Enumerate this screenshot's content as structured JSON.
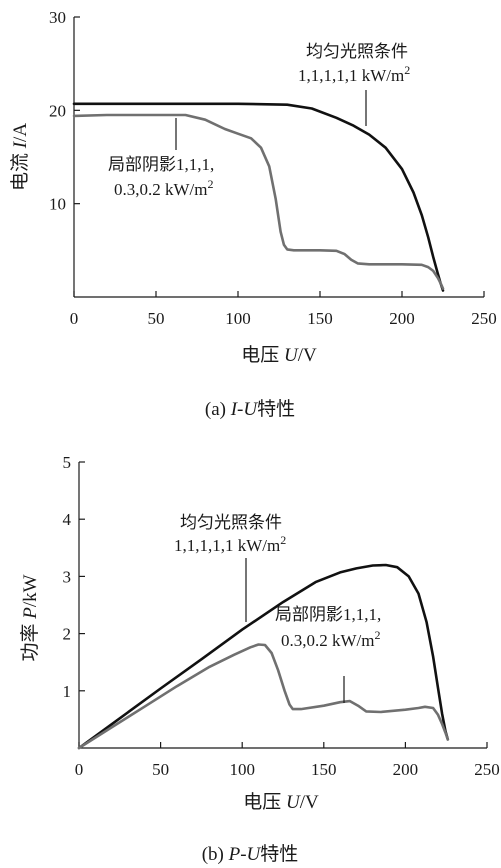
{
  "chart_data": [
    {
      "type": "line",
      "caption": "(a) I-U特性",
      "caption_prefix": "(a) ",
      "caption_var": "I-U",
      "caption_suffix": "特性",
      "xlabel_prefix": "电压 ",
      "xlabel_var": "U",
      "xlabel_suffix": "/V",
      "ylabel_prefix": "电流 ",
      "ylabel_var": "I",
      "ylabel_suffix": "/A",
      "xlim": [
        0,
        250
      ],
      "ylim": [
        0,
        30
      ],
      "xticks": [
        0,
        50,
        100,
        150,
        200,
        250
      ],
      "yticks": [
        10,
        20,
        30
      ],
      "grid": false,
      "series": [
        {
          "color": "#111111",
          "points": [
            [
              0,
              20.7
            ],
            [
              20,
              20.7
            ],
            [
              60,
              20.7
            ],
            [
              100,
              20.7
            ],
            [
              130,
              20.6
            ],
            [
              145,
              20.2
            ],
            [
              160,
              19.2
            ],
            [
              170,
              18.4
            ],
            [
              180,
              17.4
            ],
            [
              190,
              16.0
            ],
            [
              200,
              13.7
            ],
            [
              207,
              11.2
            ],
            [
              212,
              8.8
            ],
            [
              216,
              6.4
            ],
            [
              219,
              4.3
            ],
            [
              221.5,
              2.7
            ],
            [
              223.5,
              1.5
            ],
            [
              225,
              0.7
            ]
          ]
        },
        {
          "color": "#707070",
          "points": [
            [
              0,
              19.4
            ],
            [
              20,
              19.5
            ],
            [
              50,
              19.5
            ],
            [
              68,
              19.5
            ],
            [
              80,
              19.0
            ],
            [
              92,
              18.0
            ],
            [
              100,
              17.5
            ],
            [
              108,
              17.0
            ],
            [
              114,
              16.0
            ],
            [
              119,
              14.0
            ],
            [
              123,
              10.5
            ],
            [
              126,
              7.0
            ],
            [
              128,
              5.6
            ],
            [
              130,
              5.1
            ],
            [
              134,
              5.0
            ],
            [
              150,
              5.0
            ],
            [
              160,
              4.95
            ],
            [
              165,
              4.6
            ],
            [
              169,
              4.0
            ],
            [
              173,
              3.6
            ],
            [
              180,
              3.5
            ],
            [
              200,
              3.5
            ],
            [
              212,
              3.45
            ],
            [
              216,
              3.2
            ],
            [
              219,
              2.8
            ],
            [
              222,
              2.0
            ],
            [
              224,
              1.3
            ],
            [
              225,
              0.9
            ]
          ]
        }
      ],
      "annotations": [
        {
          "line1": "均匀光照条件",
          "line2_base": "1,1,1,1,1 kW/m",
          "line2_sup": "2"
        },
        {
          "line1_base": "局部阴影1,1,1,",
          "line2_base": "0.3,0.2 kW/m",
          "line2_sup": "2"
        }
      ]
    },
    {
      "type": "line",
      "caption": "(b) P-U特性",
      "caption_prefix": "(b) ",
      "caption_var": "P-U",
      "caption_suffix": "特性",
      "xlabel_prefix": "电压 ",
      "xlabel_var": "U",
      "xlabel_suffix": "/V",
      "ylabel_prefix": "功率 ",
      "ylabel_var": "P",
      "ylabel_suffix": "/kW",
      "xlim": [
        0,
        250
      ],
      "ylim": [
        0,
        5
      ],
      "xticks": [
        0,
        50,
        100,
        150,
        200,
        250
      ],
      "yticks": [
        1,
        2,
        3,
        4,
        5
      ],
      "grid": false,
      "series": [
        {
          "color": "#111111",
          "points": [
            [
              0,
              0
            ],
            [
              25,
              0.52
            ],
            [
              50,
              1.04
            ],
            [
              75,
              1.55
            ],
            [
              100,
              2.07
            ],
            [
              125,
              2.55
            ],
            [
              145,
              2.9
            ],
            [
              160,
              3.07
            ],
            [
              170,
              3.14
            ],
            [
              180,
              3.19
            ],
            [
              188,
              3.2
            ],
            [
              195,
              3.16
            ],
            [
              202,
              3.0
            ],
            [
              208,
              2.7
            ],
            [
              213,
              2.2
            ],
            [
              217,
              1.6
            ],
            [
              220,
              1.05
            ],
            [
              222.5,
              0.6
            ],
            [
              224.5,
              0.3
            ],
            [
              226,
              0.15
            ]
          ]
        },
        {
          "color": "#707070",
          "points": [
            [
              0,
              0
            ],
            [
              20,
              0.36
            ],
            [
              40,
              0.72
            ],
            [
              60,
              1.08
            ],
            [
              80,
              1.42
            ],
            [
              95,
              1.63
            ],
            [
              105,
              1.76
            ],
            [
              110,
              1.81
            ],
            [
              114,
              1.8
            ],
            [
              118,
              1.66
            ],
            [
              122,
              1.36
            ],
            [
              126,
              1.0
            ],
            [
              129,
              0.76
            ],
            [
              131,
              0.68
            ],
            [
              136,
              0.68
            ],
            [
              150,
              0.74
            ],
            [
              160,
              0.8
            ],
            [
              166,
              0.82
            ],
            [
              171,
              0.74
            ],
            [
              176,
              0.64
            ],
            [
              185,
              0.63
            ],
            [
              200,
              0.67
            ],
            [
              208,
              0.7
            ],
            [
              212,
              0.72
            ],
            [
              217,
              0.7
            ],
            [
              220,
              0.58
            ],
            [
              222.5,
              0.42
            ],
            [
              224.5,
              0.27
            ],
            [
              226,
              0.15
            ]
          ]
        }
      ],
      "annotations": [
        {
          "line1": "均匀光照条件",
          "line2_base": "1,1,1,1,1 kW/m",
          "line2_sup": "2"
        },
        {
          "line1_base": "局部阴影1,1,1,",
          "line2_base": "0.3,0.2 kW/m",
          "line2_sup": "2"
        }
      ]
    }
  ]
}
